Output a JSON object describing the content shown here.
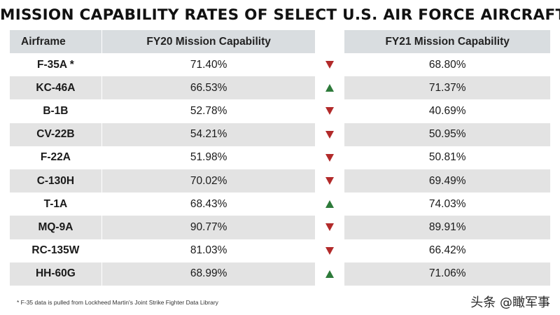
{
  "title": "MISSION CAPABILITY RATES OF SELECT U.S. AIR FORCE AIRCRAFT",
  "headers": {
    "airframe": "Airframe",
    "fy20": "FY20 Mission Capability",
    "fy21": "FY21 Mission Capability"
  },
  "rows": [
    {
      "airframe": "F-35A *",
      "fy20": "71.40%",
      "trend": "down",
      "fy21": "68.80%"
    },
    {
      "airframe": "KC-46A",
      "fy20": "66.53%",
      "trend": "up",
      "fy21": "71.37%"
    },
    {
      "airframe": "B-1B",
      "fy20": "52.78%",
      "trend": "down",
      "fy21": "40.69%"
    },
    {
      "airframe": "CV-22B",
      "fy20": "54.21%",
      "trend": "down",
      "fy21": "50.95%"
    },
    {
      "airframe": "F-22A",
      "fy20": "51.98%",
      "trend": "down",
      "fy21": "50.81%"
    },
    {
      "airframe": "C-130H",
      "fy20": "70.02%",
      "trend": "down",
      "fy21": "69.49%"
    },
    {
      "airframe": "T-1A",
      "fy20": "68.43%",
      "trend": "up",
      "fy21": "74.03%"
    },
    {
      "airframe": "MQ-9A",
      "fy20": "90.77%",
      "trend": "down",
      "fy21": "89.91%"
    },
    {
      "airframe": "RC-135W",
      "fy20": "81.03%",
      "trend": "down",
      "fy21": "66.42%"
    },
    {
      "airframe": "HH-60G",
      "fy20": "68.99%",
      "trend": "up",
      "fy21": "71.06%"
    }
  ],
  "colors": {
    "down": "#b22a2a",
    "up": "#2d7a3a",
    "header_bg": "#d9dde0",
    "shaded_bg": "#e3e3e3"
  },
  "footnote": "* F-35 data is pulled from Lockheed Martin's Joint Strike Fighter Data Library",
  "watermark": "头条 @瞰军事"
}
